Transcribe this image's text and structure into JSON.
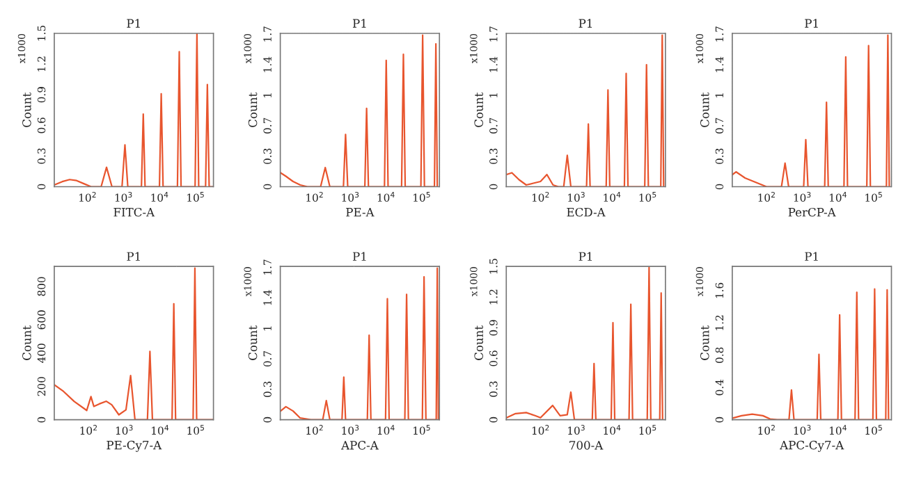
{
  "chart_data": [
    {
      "type": "line",
      "title": "P1",
      "xlabel": "FITC-A",
      "ylabel": "Count",
      "annotations": [
        "x1000"
      ],
      "log": "x",
      "xlim": [
        12,
        316000
      ],
      "xticks": [
        {
          "value": 100,
          "label": "10$^{2}$"
        },
        {
          "value": 1000,
          "label": "10$^{3}$"
        },
        {
          "value": 10000,
          "label": "10$^{4}$"
        },
        {
          "value": 100000,
          "label": "10$^{5}$"
        }
      ],
      "ylim": [
        0,
        1.5
      ],
      "yticks": [
        0,
        0.3,
        0.6,
        0.9,
        1.2,
        1.5
      ],
      "series": [
        {
          "color": "#e8552e",
          "x": [
            12.6,
            20,
            32,
            50,
            79,
            126,
            240,
            339,
            479,
            912,
            1100,
            1320,
            3160,
            3550,
            3980,
            10000,
            11200,
            12600,
            31600,
            35500,
            39800,
            97700,
            110000,
            123000,
            191000,
            214000,
            240000,
            316000
          ],
          "values": [
            0.02,
            0.05,
            0.07,
            0.06,
            0.03,
            0,
            0,
            0.19,
            0,
            0,
            0.41,
            0,
            0,
            0.71,
            0,
            0,
            0.91,
            0,
            0,
            1.32,
            0,
            0,
            1.5,
            0,
            0,
            1.0,
            0,
            0
          ]
        }
      ]
    },
    {
      "type": "line",
      "title": "P1",
      "xlabel": "PE-A",
      "ylabel": "Count",
      "annotations": [
        "x1000"
      ],
      "log": "x",
      "xlim": [
        11,
        316000
      ],
      "xticks": [
        {
          "value": 100,
          "label": "10$^{2}$"
        },
        {
          "value": 1000,
          "label": "10$^{3}$"
        },
        {
          "value": 10000,
          "label": "10$^{4}$"
        },
        {
          "value": 100000,
          "label": "10$^{5}$"
        }
      ],
      "ylim": [
        0,
        1.76
      ],
      "yticks": [
        0,
        {
          "value": 0.35,
          "label": "0.3"
        },
        0.7,
        {
          "value": 1.05,
          "label": "1"
        },
        1.4,
        {
          "value": 1.75,
          "label": "1.7"
        }
      ],
      "series": [
        {
          "color": "#e8552e",
          "x": [
            11.2,
            15.8,
            25.1,
            39.8,
            63.1,
            148,
            200,
            269,
            646,
            741,
            851,
            2570,
            2880,
            3240,
            9120,
            10200,
            11500,
            27500,
            30900,
            34700,
            95500,
            107000,
            120000,
            229000,
            251000,
            275000
          ],
          "values": [
            0.16,
            0.12,
            0.06,
            0.02,
            0,
            0,
            0.22,
            0,
            0,
            0.6,
            0,
            0,
            0.9,
            0,
            0,
            1.45,
            0,
            0,
            1.52,
            0,
            0,
            1.74,
            0,
            0,
            1.64,
            0
          ]
        }
      ]
    },
    {
      "type": "line",
      "title": "P1",
      "xlabel": "ECD-A",
      "ylabel": "Count",
      "annotations": [
        "x1000"
      ],
      "log": "x",
      "xlim": [
        11,
        316000
      ],
      "xticks": [
        {
          "value": 100,
          "label": "10$^{2}$"
        },
        {
          "value": 1000,
          "label": "10$^{3}$"
        },
        {
          "value": 10000,
          "label": "10$^{4}$"
        },
        {
          "value": 100000,
          "label": "10$^{5}$"
        }
      ],
      "ylim": [
        0,
        1.76
      ],
      "yticks": [
        0,
        {
          "value": 0.35,
          "label": "0.3"
        },
        0.7,
        {
          "value": 1.05,
          "label": "1"
        },
        1.4,
        {
          "value": 1.75,
          "label": "1.7"
        }
      ],
      "series": [
        {
          "color": "#e8552e",
          "x": [
            11.2,
            15.8,
            25.1,
            39.8,
            63.1,
            100,
            151,
            224,
            316,
            447,
            562,
            708,
            1950,
            2190,
            2450,
            6920,
            7760,
            8710,
            22400,
            25100,
            28200,
            83200,
            93300,
            105000,
            234000,
            257000,
            282000
          ],
          "values": [
            0.14,
            0.16,
            0.08,
            0.02,
            0.04,
            0.06,
            0.14,
            0.02,
            0,
            0,
            0.36,
            0,
            0,
            0.72,
            0,
            0,
            1.11,
            0,
            0,
            1.3,
            0,
            0,
            1.4,
            0,
            0,
            1.74,
            0
          ]
        }
      ]
    },
    {
      "type": "line",
      "title": "P1",
      "xlabel": "PerCP-A",
      "ylabel": "Count",
      "annotations": [
        "x1000"
      ],
      "log": "x",
      "xlim": [
        11,
        316000
      ],
      "xticks": [
        {
          "value": 100,
          "label": "10$^{2}$"
        },
        {
          "value": 1000,
          "label": "10$^{3}$"
        },
        {
          "value": 10000,
          "label": "10$^{4}$"
        },
        {
          "value": 100000,
          "label": "10$^{5}$"
        }
      ],
      "ylim": [
        0,
        1.76
      ],
      "yticks": [
        0,
        {
          "value": 0.35,
          "label": "0.3"
        },
        0.7,
        {
          "value": 1.05,
          "label": "1"
        },
        1.4,
        {
          "value": 1.75,
          "label": "1.7"
        }
      ],
      "series": [
        {
          "color": "#e8552e",
          "x": [
            11.2,
            14.1,
            25.1,
            50.1,
            100,
            263,
            331,
            417,
            1100,
            1260,
            1450,
            4270,
            4790,
            5370,
            14800,
            16600,
            18600,
            64600,
            72400,
            81300,
            229000,
            251000,
            275000
          ],
          "values": [
            0.14,
            0.17,
            0.1,
            0.05,
            0,
            0,
            0.27,
            0,
            0,
            0.54,
            0,
            0,
            0.97,
            0,
            0,
            1.49,
            0,
            0,
            1.62,
            0,
            0,
            1.74,
            0
          ]
        }
      ]
    },
    {
      "type": "line",
      "title": "P1",
      "xlabel": "PE-Cy7-A",
      "ylabel": "Count",
      "log": "x",
      "xlim": [
        11,
        316000
      ],
      "xticks": [
        {
          "value": 100,
          "label": "10$^{2}$"
        },
        {
          "value": 1000,
          "label": "10$^{3}$"
        },
        {
          "value": 10000,
          "label": "10$^{4}$"
        },
        {
          "value": 100000,
          "label": "10$^{5}$"
        }
      ],
      "ylim": [
        0,
        920
      ],
      "yticks": [
        0,
        200,
        400,
        600,
        800
      ],
      "series": [
        {
          "color": "#e8552e",
          "x": [
            11.2,
            20,
            39.8,
            89.1,
            117,
            141,
            200,
            316,
            447,
            708,
            1120,
            1510,
            2000,
            4470,
            5250,
            6170,
            21900,
            24500,
            27500,
            85100,
            95500,
            107000,
            316000
          ],
          "values": [
            209,
            170,
            110,
            56,
            139,
            80,
            95,
            111,
            90,
            30,
            60,
            265,
            0,
            0,
            410,
            0,
            0,
            696,
            0,
            0,
            910,
            0,
            0
          ]
        }
      ]
    },
    {
      "type": "line",
      "title": "P1",
      "xlabel": "APC-A",
      "ylabel": "Count",
      "annotations": [
        "x1000"
      ],
      "log": "x",
      "xlim": [
        11,
        316000
      ],
      "xticks": [
        {
          "value": 100,
          "label": "10$^{2}$"
        },
        {
          "value": 1000,
          "label": "10$^{3}$"
        },
        {
          "value": 10000,
          "label": "10$^{4}$"
        },
        {
          "value": 100000,
          "label": "10$^{5}$"
        }
      ],
      "ylim": [
        0,
        1.76
      ],
      "yticks": [
        0,
        {
          "value": 0.35,
          "label": "0.3"
        },
        0.7,
        {
          "value": 1.05,
          "label": "1"
        },
        1.4,
        {
          "value": 1.75,
          "label": "1.7"
        }
      ],
      "series": [
        {
          "color": "#e8552e",
          "x": [
            11.2,
            15.8,
            25.1,
            39.8,
            79.4,
            170,
            214,
            269,
            589,
            661,
            741,
            3020,
            3390,
            3800,
            9770,
            11000,
            12300,
            33900,
            38000,
            42700,
            105000,
            117000,
            132000,
            257000,
            275000,
            295000
          ],
          "values": [
            0.1,
            0.15,
            0.1,
            0.02,
            0,
            0,
            0.22,
            0,
            0,
            0.49,
            0,
            0,
            0.97,
            0,
            0,
            1.39,
            0,
            0,
            1.44,
            0,
            0,
            1.64,
            0,
            0,
            1.74,
            0
          ]
        }
      ]
    },
    {
      "type": "line",
      "title": "P1",
      "xlabel": "700-A",
      "ylabel": "Count",
      "annotations": [
        "x1000"
      ],
      "log": "x",
      "xlim": [
        11,
        316000
      ],
      "xticks": [
        {
          "value": 100,
          "label": "10$^{2}$"
        },
        {
          "value": 1000,
          "label": "10$^{3}$"
        },
        {
          "value": 10000,
          "label": "10$^{4}$"
        },
        {
          "value": 100000,
          "label": "10$^{5}$"
        }
      ],
      "ylim": [
        0,
        1.5
      ],
      "yticks": [
        0,
        0.3,
        0.6,
        0.9,
        1.2,
        1.5
      ],
      "series": [
        {
          "color": "#e8552e",
          "x": [
            11.2,
            20,
            39.8,
            70.8,
            100,
            219,
            355,
            562,
            708,
            891,
            2820,
            3160,
            3550,
            9550,
            10700,
            12000,
            30200,
            33900,
            38000,
            97700,
            110000,
            123000,
            219000,
            240000,
            263000
          ],
          "values": [
            0.02,
            0.06,
            0.07,
            0.04,
            0.02,
            0.14,
            0.04,
            0.05,
            0.27,
            0,
            0,
            0.55,
            0,
            0,
            0.95,
            0,
            0,
            1.13,
            0,
            0,
            1.49,
            0,
            0,
            1.24,
            0
          ]
        }
      ]
    },
    {
      "type": "line",
      "title": "P1",
      "xlabel": "APC-Cy7-A",
      "ylabel": "Count",
      "annotations": [
        "x1000"
      ],
      "log": "x",
      "xlim": [
        11,
        316000
      ],
      "xticks": [
        {
          "value": 100,
          "label": "10$^{2}$"
        },
        {
          "value": 1000,
          "label": "10$^{3}$"
        },
        {
          "value": 10000,
          "label": "10$^{4}$"
        },
        {
          "value": 100000,
          "label": "10$^{5}$"
        }
      ],
      "ylim": [
        0,
        1.9
      ],
      "yticks": [
        0,
        0.4,
        0.8,
        1.2,
        1.6
      ],
      "series": [
        {
          "color": "#e8552e",
          "x": [
            11.2,
            20,
            39.8,
            79.4,
            126,
            200,
            427,
            501,
            589,
            2630,
            2950,
            3310,
            10000,
            11200,
            12600,
            30200,
            33900,
            38000,
            95500,
            107000,
            120000,
            219000,
            240000,
            263000
          ],
          "values": [
            0.02,
            0.05,
            0.07,
            0.05,
            0.01,
            0,
            0,
            0.37,
            0,
            0,
            0.81,
            0,
            0,
            1.3,
            0,
            0,
            1.58,
            0,
            0,
            1.62,
            0,
            0,
            1.61,
            0
          ]
        }
      ]
    }
  ]
}
